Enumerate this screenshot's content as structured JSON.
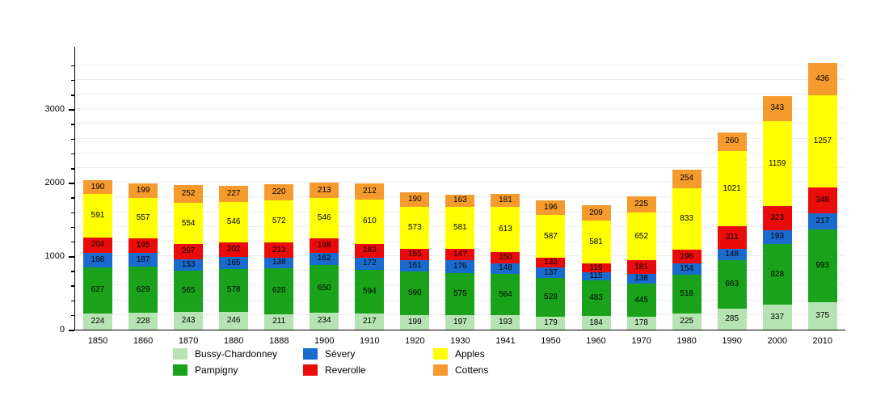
{
  "chart_data": {
    "type": "bar",
    "variant": "stacked-vertical",
    "title": "",
    "xlabel": "",
    "ylabel": "",
    "categories": [
      "1850",
      "1860",
      "1870",
      "1880",
      "1888",
      "1900",
      "1910",
      "1920",
      "1930",
      "1941",
      "1950",
      "1960",
      "1970",
      "1980",
      "1990",
      "2000",
      "2010"
    ],
    "series": [
      {
        "name": "Bussy-Chardonney",
        "color": "#b5e3b2",
        "values": [
          224,
          228,
          243,
          246,
          211,
          234,
          217,
          199,
          197,
          193,
          179,
          184,
          178,
          225,
          285,
          337,
          375
        ]
      },
      {
        "name": "Pampigny",
        "color": "#1aa31a",
        "values": [
          627,
          629,
          565,
          578,
          628,
          650,
          594,
          590,
          575,
          564,
          528,
          483,
          445,
          518,
          663,
          828,
          993
        ]
      },
      {
        "name": "Sévery",
        "color": "#1a6bce",
        "values": [
          198,
          187,
          153,
          165,
          138,
          162,
          172,
          161,
          176,
          148,
          137,
          115,
          138,
          154,
          148,
          193,
          217
        ]
      },
      {
        "name": "Reverolle",
        "color": "#ea0b0b",
        "values": [
          204,
          195,
          207,
          202,
          213,
          198,
          183,
          155,
          147,
          150,
          133,
          119,
          181,
          196,
          311,
          323,
          348
        ]
      },
      {
        "name": "Apples",
        "color": "#ffff00",
        "values": [
          591,
          557,
          554,
          546,
          572,
          546,
          610,
          573,
          581,
          613,
          587,
          581,
          652,
          833,
          1021,
          1159,
          1257
        ]
      },
      {
        "name": "Cottens",
        "color": "#f59b2d",
        "values": [
          190,
          199,
          252,
          227,
          220,
          213,
          212,
          190,
          163,
          181,
          196,
          209,
          225,
          254,
          260,
          343,
          436
        ]
      }
    ],
    "y_ticks": [
      0,
      1000,
      2000,
      3000
    ],
    "ylim": [
      0,
      3850
    ],
    "grid_step": 200,
    "grid": "on",
    "legend_position": "bottom",
    "value_labels": "inside-segments",
    "colors": {
      "grid": "#ebebeb",
      "axis": "#000000",
      "background": "#ffffff"
    }
  }
}
